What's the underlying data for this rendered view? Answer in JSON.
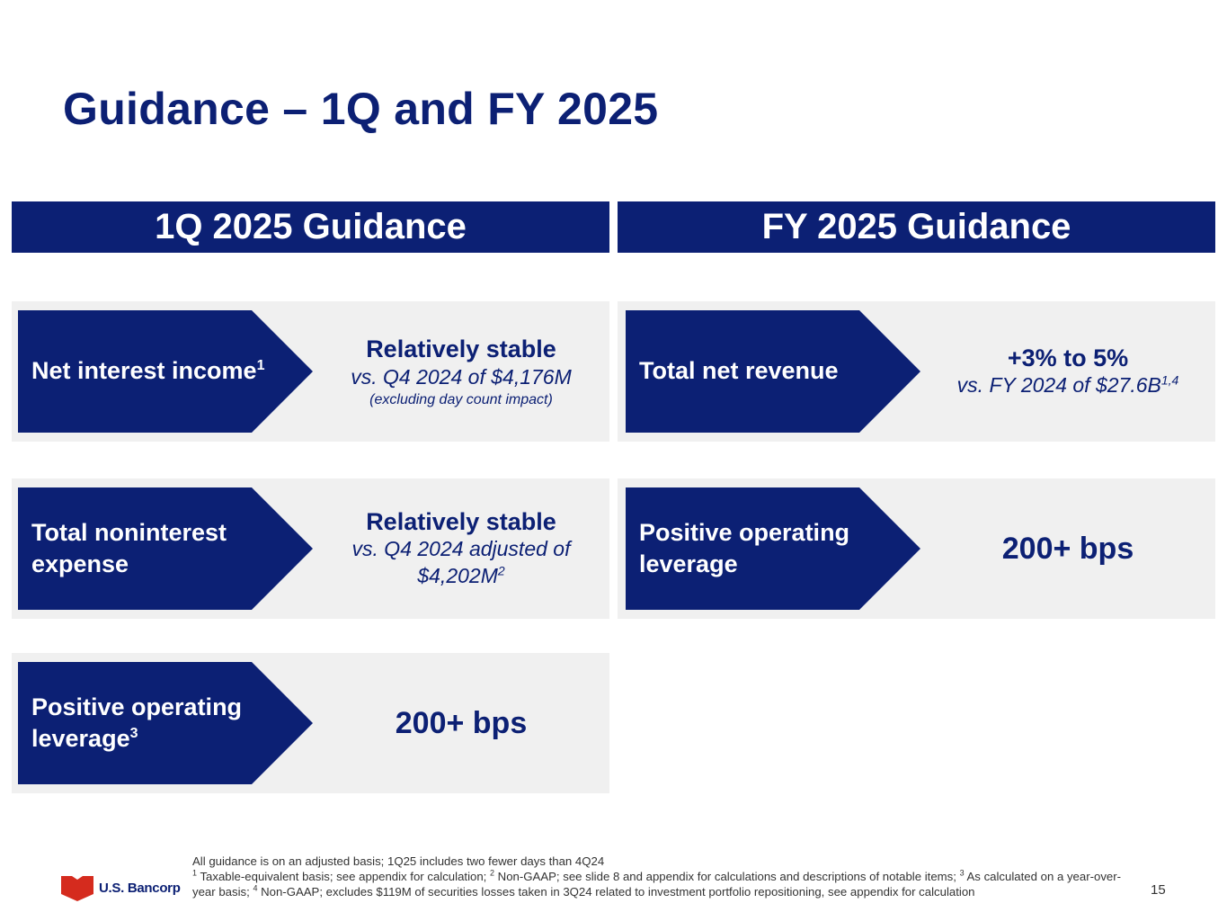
{
  "title": "Guidance – 1Q and FY 2025",
  "headers": {
    "left": "1Q 2025 Guidance",
    "right": "FY 2025 Guidance"
  },
  "q1": [
    {
      "label": "Net interest income",
      "label_sup": "1",
      "main": "Relatively stable",
      "sub": "vs. Q4 2024 of $4,176M",
      "note": "(excluding day count impact)"
    },
    {
      "label": "Total noninterest expense",
      "main": "Relatively stable",
      "sub": "vs. Q4 2024 adjusted of $4,202M",
      "sub_sup": "2"
    },
    {
      "label": "Positive operating leverage",
      "label_sup": "3",
      "big": "200+ bps"
    }
  ],
  "fy": [
    {
      "label": "Total net revenue",
      "main": "+3% to 5%",
      "sub": "vs. FY 2024 of $27.6B",
      "sub_sup": "1,4"
    },
    {
      "label": "Positive operating leverage",
      "big": "200+ bps"
    }
  ],
  "footnotes": {
    "line1": "All guidance is on an adjusted basis; 1Q25 includes two fewer days than 4Q24",
    "n1": "1",
    "t1": " Taxable-equivalent basis; see appendix for calculation; ",
    "n2": "2",
    "t2": " Non-GAAP; see slide 8 and appendix for calculations and descriptions of notable items; ",
    "n3": "3",
    "t3": " As calculated on a year-over-year basis; ",
    "n4": "4",
    "t4": " Non-GAAP; excludes $119M of securities losses taken in 3Q24 related to investment portfolio repositioning, see appendix for calculation"
  },
  "logo": {
    "text": "U.S. Bancorp"
  },
  "page_number": "15",
  "colors": {
    "navy": "#0c2074",
    "card_bg": "#f0f0f0",
    "logo_red": "#d52b1e"
  }
}
